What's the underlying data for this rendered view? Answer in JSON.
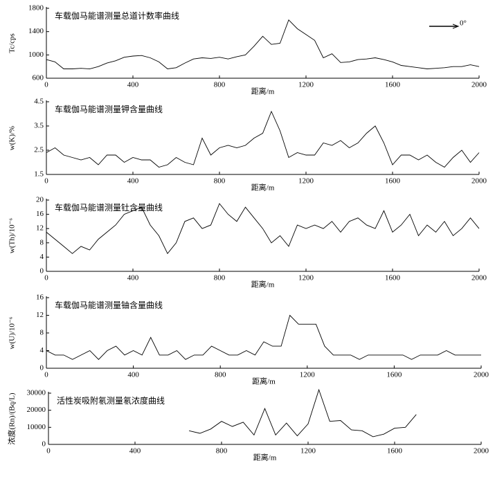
{
  "chart_data": [
    {
      "type": "line",
      "title": "车载伽马能谱测量总道计数率曲线",
      "xlabel": "距离/m",
      "ylabel": "Tc/cps",
      "annotation": "0°",
      "color": "#000000",
      "x": [
        0,
        40,
        80,
        120,
        160,
        200,
        240,
        280,
        320,
        360,
        400,
        440,
        480,
        520,
        560,
        600,
        640,
        680,
        720,
        760,
        800,
        840,
        880,
        920,
        960,
        1000,
        1040,
        1080,
        1120,
        1160,
        1200,
        1240,
        1280,
        1320,
        1360,
        1400,
        1440,
        1480,
        1520,
        1560,
        1600,
        1640,
        1680,
        1720,
        1760,
        1800,
        1840,
        1880,
        1920,
        1960,
        2000
      ],
      "values": [
        920,
        880,
        760,
        760,
        770,
        760,
        800,
        860,
        900,
        960,
        980,
        990,
        950,
        880,
        760,
        780,
        860,
        930,
        950,
        940,
        960,
        930,
        970,
        1000,
        1150,
        1320,
        1180,
        1200,
        1600,
        1450,
        1350,
        1250,
        950,
        1020,
        870,
        880,
        920,
        930,
        950,
        920,
        880,
        820,
        800,
        780,
        760,
        770,
        780,
        800,
        800,
        830,
        800
      ],
      "xlim": [
        0,
        2000
      ],
      "xticks": [
        0,
        400,
        800,
        1200,
        1600,
        2000
      ],
      "ylim": [
        600,
        1800
      ],
      "yticks": [
        600,
        1000,
        1400,
        1800
      ]
    },
    {
      "type": "line",
      "title": "车载伽马能谱测量钾含量曲线",
      "xlabel": "距离/m",
      "ylabel": "w(K)/%",
      "color": "#000000",
      "x": [
        0,
        40,
        80,
        120,
        160,
        200,
        240,
        280,
        320,
        360,
        400,
        440,
        480,
        520,
        560,
        600,
        640,
        680,
        720,
        760,
        800,
        840,
        880,
        920,
        960,
        1000,
        1040,
        1080,
        1120,
        1160,
        1200,
        1240,
        1280,
        1320,
        1360,
        1400,
        1440,
        1480,
        1520,
        1560,
        1600,
        1640,
        1680,
        1720,
        1760,
        1800,
        1840,
        1880,
        1920,
        1960,
        2000
      ],
      "values": [
        2.4,
        2.6,
        2.3,
        2.2,
        2.1,
        2.2,
        1.9,
        2.3,
        2.3,
        2.0,
        2.2,
        2.1,
        2.1,
        1.8,
        1.9,
        2.2,
        2.0,
        1.9,
        3.0,
        2.3,
        2.6,
        2.7,
        2.6,
        2.7,
        3.0,
        3.2,
        4.1,
        3.3,
        2.2,
        2.4,
        2.3,
        2.3,
        2.8,
        2.7,
        2.9,
        2.6,
        2.8,
        3.2,
        3.5,
        2.8,
        1.9,
        2.3,
        2.3,
        2.1,
        2.3,
        2.0,
        1.8,
        2.2,
        2.5,
        2.0,
        2.4
      ],
      "xlim": [
        0,
        2000
      ],
      "xticks": [
        0,
        400,
        800,
        1200,
        1600,
        2000
      ],
      "ylim": [
        1.5,
        4.5
      ],
      "yticks": [
        1.5,
        2.5,
        3.5,
        4.5
      ]
    },
    {
      "type": "line",
      "title": "车载伽马能谱测量钍含量曲线",
      "xlabel": "距离/m",
      "ylabel": "w(Th)/10⁻⁶",
      "color": "#000000",
      "x": [
        0,
        40,
        80,
        120,
        160,
        200,
        240,
        280,
        320,
        360,
        400,
        440,
        480,
        520,
        560,
        600,
        640,
        680,
        720,
        760,
        800,
        840,
        880,
        920,
        960,
        1000,
        1040,
        1080,
        1120,
        1160,
        1200,
        1240,
        1280,
        1320,
        1360,
        1400,
        1440,
        1480,
        1520,
        1560,
        1600,
        1640,
        1680,
        1720,
        1760,
        1800,
        1840,
        1880,
        1920,
        1960,
        2000
      ],
      "values": [
        11,
        9,
        7,
        5,
        7,
        6,
        9,
        11,
        13,
        16,
        17,
        18,
        13,
        10,
        5,
        8,
        14,
        15,
        12,
        13,
        19,
        16,
        14,
        18,
        15,
        12,
        8,
        10,
        7,
        13,
        12,
        13,
        12,
        14,
        11,
        14,
        15,
        13,
        12,
        17,
        11,
        13,
        16,
        10,
        13,
        11,
        14,
        10,
        12,
        15,
        12
      ],
      "xlim": [
        0,
        2000
      ],
      "xticks": [
        0,
        400,
        800,
        1200,
        1600,
        2000
      ],
      "ylim": [
        0,
        20
      ],
      "yticks": [
        0,
        4,
        8,
        12,
        16,
        20
      ]
    },
    {
      "type": "line",
      "title": "车载伽马能谱测量铀含量曲线",
      "xlabel": "距离/m",
      "ylabel": "w(U)/10⁻⁶",
      "color": "#000000",
      "x": [
        0,
        40,
        80,
        120,
        160,
        200,
        240,
        280,
        320,
        360,
        400,
        440,
        480,
        520,
        560,
        600,
        640,
        680,
        720,
        760,
        800,
        840,
        880,
        920,
        960,
        1000,
        1040,
        1080,
        1120,
        1160,
        1200,
        1240,
        1280,
        1320,
        1360,
        1400,
        1440,
        1480,
        1520,
        1560,
        1600,
        1640,
        1680,
        1720,
        1760,
        1800,
        1840,
        1880,
        1920,
        1960,
        2000
      ],
      "values": [
        4,
        3,
        3,
        2,
        3,
        4,
        2,
        4,
        5,
        3,
        4,
        3,
        7,
        3,
        3,
        4,
        2,
        3,
        3,
        5,
        4,
        3,
        3,
        4,
        3,
        6,
        5,
        5,
        12,
        10,
        10,
        10,
        5,
        3,
        3,
        3,
        2,
        3,
        3,
        3,
        3,
        3,
        2,
        3,
        3,
        3,
        4,
        3,
        3,
        3,
        3
      ],
      "xlim": [
        0,
        2000
      ],
      "xticks": [
        0,
        400,
        800,
        1200,
        1600,
        2000
      ],
      "ylim": [
        0,
        16
      ],
      "yticks": [
        0,
        4,
        8,
        12,
        16
      ]
    },
    {
      "type": "line",
      "title": "活性炭吸附氡测量氡浓度曲线",
      "xlabel": "距离/m",
      "ylabel": "浓度(Rn)/(Bq/L)",
      "color": "#000000",
      "x": [
        650,
        700,
        750,
        800,
        850,
        900,
        950,
        1000,
        1050,
        1100,
        1150,
        1200,
        1250,
        1300,
        1350,
        1400,
        1450,
        1500,
        1550,
        1600,
        1650,
        1700
      ],
      "values": [
        8000,
        6500,
        9000,
        13500,
        10500,
        13000,
        5500,
        21000,
        5500,
        12500,
        5000,
        12000,
        32000,
        13500,
        14000,
        8500,
        8000,
        4500,
        6000,
        9500,
        10000,
        17500
      ],
      "xlim": [
        0,
        2000
      ],
      "xticks": [
        0,
        400,
        800,
        1200,
        1600,
        2000
      ],
      "ylim": [
        0,
        30000
      ],
      "yticks": [
        0,
        10000,
        20000,
        30000
      ]
    }
  ]
}
